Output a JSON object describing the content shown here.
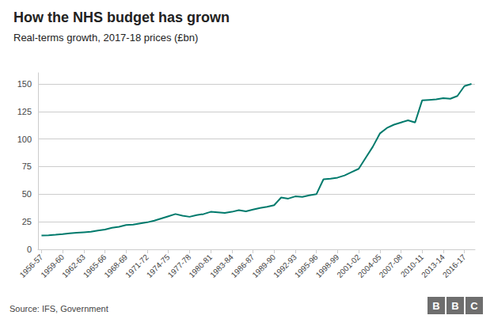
{
  "chart_data": {
    "type": "line",
    "title": "How the NHS budget has grown",
    "subtitle": "Real-terms growth, 2017-18 prices (£bn)",
    "source": "Source: IFS, Government",
    "logo": "BBC",
    "categories": [
      "1956-57",
      null,
      null,
      "1959-60",
      null,
      null,
      "1962-63",
      null,
      null,
      "1965-66",
      null,
      null,
      "1968-69",
      null,
      null,
      "1971-72",
      null,
      null,
      "1974-75",
      null,
      null,
      "1977-78",
      null,
      null,
      "1980-81",
      null,
      null,
      "1983-84",
      null,
      null,
      "1986-87",
      null,
      null,
      "1989-90",
      null,
      null,
      "1992-93",
      null,
      null,
      "1995-96",
      null,
      null,
      "1998-99",
      null,
      null,
      "2001-02",
      null,
      null,
      "2004-05",
      null,
      null,
      "2007-08",
      null,
      null,
      "2010-11",
      null,
      null,
      "2013-14",
      null,
      null,
      "2016-17",
      null
    ],
    "values": [
      12.5,
      12.8,
      13.2,
      13.8,
      14.5,
      15.0,
      15.5,
      16.0,
      17.0,
      18.0,
      19.5,
      20.5,
      22.0,
      22.5,
      23.5,
      24.5,
      26.0,
      28.0,
      30.0,
      32.0,
      30.5,
      29.5,
      31.0,
      32.0,
      34.0,
      33.5,
      33.0,
      34.0,
      35.5,
      34.5,
      36.0,
      37.5,
      38.5,
      40.0,
      47.0,
      46.0,
      48.0,
      47.5,
      49.0,
      50.0,
      63.5,
      64.0,
      65.0,
      67.0,
      70.0,
      73.0,
      83.0,
      93.0,
      105.0,
      110.0,
      113.0,
      115.0,
      117.0,
      115.0,
      135.0,
      135.5,
      136.0,
      137.0,
      136.5,
      139.0,
      148.0,
      150.0
    ],
    "color": "#007a6c",
    "ylim": [
      0,
      160
    ],
    "yticks": [
      0,
      25,
      50,
      75,
      100,
      125,
      150
    ],
    "grid": true
  }
}
